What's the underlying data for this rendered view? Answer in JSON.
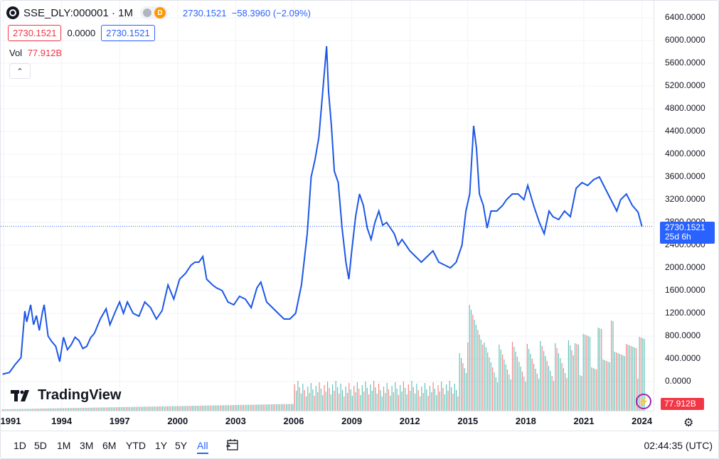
{
  "legend": {
    "symbol": "SSE_DLY:000001 · 1M",
    "exchange_badge": "D",
    "last": "2730.1521",
    "change": "−58.3960 (−2.09%)"
  },
  "price_boxes": {
    "sell": "2730.1521",
    "spread": "0.0000",
    "buy": "2730.1521"
  },
  "volume": {
    "label": "Vol",
    "value": "77.912B"
  },
  "price_axis": {
    "ticks": [
      "6400.0000",
      "6000.0000",
      "5600.0000",
      "5200.0000",
      "4800.0000",
      "4400.0000",
      "4000.0000",
      "3600.0000",
      "3200.0000",
      "2800.0000",
      "2400.0000",
      "2000.0000",
      "1600.0000",
      "1200.0000",
      "800.0000",
      "400.0000",
      "0.0000",
      "0"
    ],
    "last_tag": "2730.1521",
    "countdown": "25d 6h",
    "volume_tag": "77.912B"
  },
  "time_axis": {
    "years": [
      "1991",
      "1994",
      "1997",
      "2000",
      "2003",
      "2006",
      "2009",
      "2012",
      "2015",
      "2018",
      "2021",
      "2024"
    ]
  },
  "toolbar": {
    "ranges": [
      "1D",
      "5D",
      "1M",
      "3M",
      "6M",
      "YTD",
      "1Y",
      "5Y",
      "All"
    ],
    "active": "All",
    "clock": "02:44:35 (UTC)"
  },
  "branding": "TradingView",
  "colors": {
    "line": "#1c57e6",
    "up_vol": "#26a69a",
    "down_vol": "#ef5350",
    "accent": "#2962ff"
  },
  "chart_data": {
    "type": "line",
    "x": [
      1990.95,
      1991.3,
      1991.6,
      1991.9,
      1992.1,
      1992.2,
      1992.4,
      1992.55,
      1992.7,
      1992.85,
      1993.0,
      1993.1,
      1993.3,
      1993.5,
      1993.7,
      1993.9,
      1994.1,
      1994.3,
      1994.5,
      1994.7,
      1994.9,
      1995.1,
      1995.3,
      1995.5,
      1995.7,
      1996.0,
      1996.3,
      1996.5,
      1996.8,
      1997.0,
      1997.2,
      1997.4,
      1997.7,
      1998.0,
      1998.3,
      1998.6,
      1998.9,
      1999.2,
      1999.5,
      1999.8,
      2000.1,
      2000.4,
      2000.7,
      2000.9,
      2001.1,
      2001.3,
      2001.5,
      2001.8,
      2002.0,
      2002.3,
      2002.6,
      2002.9,
      2003.2,
      2003.5,
      2003.8,
      2004.1,
      2004.3,
      2004.6,
      2004.9,
      2005.2,
      2005.5,
      2005.8,
      2006.1,
      2006.4,
      2006.7,
      2006.9,
      2007.1,
      2007.3,
      2007.5,
      2007.7,
      2007.8,
      2007.95,
      2008.1,
      2008.3,
      2008.5,
      2008.7,
      2008.85,
      2009.0,
      2009.2,
      2009.4,
      2009.6,
      2009.8,
      2010.0,
      2010.2,
      2010.4,
      2010.6,
      2010.8,
      2011.0,
      2011.2,
      2011.4,
      2011.6,
      2011.8,
      2012.0,
      2012.3,
      2012.6,
      2012.9,
      2013.2,
      2013.5,
      2013.8,
      2014.1,
      2014.4,
      2014.7,
      2014.9,
      2015.1,
      2015.3,
      2015.45,
      2015.6,
      2015.8,
      2016.0,
      2016.2,
      2016.5,
      2016.8,
      2017.0,
      2017.3,
      2017.6,
      2017.9,
      2018.1,
      2018.4,
      2018.7,
      2018.95,
      2019.2,
      2019.4,
      2019.7,
      2020.0,
      2020.3,
      2020.6,
      2020.9,
      2021.2,
      2021.5,
      2021.8,
      2022.1,
      2022.4,
      2022.7,
      2022.9,
      2023.2,
      2023.5,
      2023.8,
      2024.0
    ],
    "values": [
      130,
      160,
      300,
      420,
      1240,
      1050,
      1350,
      1000,
      1160,
      900,
      1200,
      1350,
      800,
      700,
      620,
      350,
      780,
      560,
      650,
      780,
      720,
      580,
      620,
      770,
      850,
      1100,
      1280,
      1000,
      1250,
      1400,
      1200,
      1400,
      1200,
      1150,
      1400,
      1300,
      1100,
      1250,
      1700,
      1450,
      1800,
      1900,
      2050,
      2100,
      2100,
      2200,
      1800,
      1700,
      1650,
      1600,
      1400,
      1350,
      1500,
      1450,
      1300,
      1650,
      1750,
      1400,
      1300,
      1200,
      1100,
      1100,
      1200,
      1700,
      2600,
      3600,
      3900,
      4300,
      5100,
      5900,
      5100,
      4500,
      3700,
      3500,
      2700,
      2100,
      1800,
      2300,
      2900,
      3300,
      3100,
      2700,
      2500,
      2800,
      3000,
      2750,
      2800,
      2700,
      2600,
      2400,
      2500,
      2400,
      2300,
      2200,
      2100,
      2200,
      2300,
      2100,
      2050,
      2000,
      2100,
      2400,
      3000,
      3300,
      4500,
      4100,
      3300,
      3100,
      2700,
      3000,
      3000,
      3100,
      3200,
      3300,
      3300,
      3200,
      3450,
      3100,
      2800,
      2600,
      3000,
      2900,
      2850,
      3000,
      2900,
      3400,
      3500,
      3450,
      3550,
      3600,
      3400,
      3200,
      3000,
      3200,
      3300,
      3100,
      2980,
      2730
    ],
    "title": "SSE_DLY:000001 · 1M",
    "xlabel": "",
    "ylabel": "",
    "ylim": [
      0,
      6400
    ],
    "grid": true
  }
}
